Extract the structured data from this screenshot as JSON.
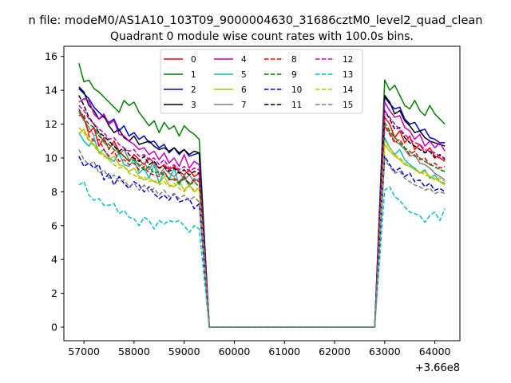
{
  "figure": {
    "suptitle": "n file: modeM0/AS1A10_103T09_9000004630_31686cztM0_level2_quad_clean",
    "x_offset_label": "+3.66e8"
  },
  "chart_data": {
    "type": "line",
    "title": "Quadrant 0 module wise count rates with 100.0s bins.",
    "xlabel": "",
    "ylabel": "",
    "x_offset": 366000000,
    "xlim": [
      56600,
      64500
    ],
    "ylim": [
      -0.8,
      16.6
    ],
    "xticks": [
      57000,
      58000,
      59000,
      60000,
      61000,
      62000,
      63000,
      64000
    ],
    "yticks": [
      0,
      2,
      4,
      6,
      8,
      10,
      12,
      14,
      16
    ],
    "grid": false,
    "legend": {
      "placement": "top-center",
      "columns": 4
    },
    "x_segment1": [
      56900,
      57000,
      57100,
      57200,
      57300,
      57400,
      57500,
      57600,
      57700,
      57800,
      57900,
      58000,
      58100,
      58200,
      58300,
      58400,
      58500,
      58600,
      58700,
      58800,
      58900,
      59000,
      59100,
      59200,
      59300
    ],
    "x_gap": [
      59500,
      62800
    ],
    "x_segment2": [
      63000,
      63100,
      63200,
      63300,
      63400,
      63500,
      63600,
      63700,
      63800,
      63900,
      64000,
      64100,
      64200
    ],
    "series": [
      {
        "name": "0",
        "color": "#ff0000",
        "dash": "solid",
        "seg1": [
          12.9,
          12.3,
          11.5,
          11.8,
          10.7,
          11.2,
          10.5,
          11.0,
          10.4,
          10.1,
          9.8,
          10.2,
          9.9,
          9.6,
          10.0,
          9.7,
          9.4,
          9.6,
          9.3,
          9.5,
          9.2,
          9.0,
          9.3,
          8.9,
          9.1
        ],
        "seg2": [
          12.4,
          12.0,
          11.2,
          11.6,
          10.9,
          11.3,
          10.5,
          10.8,
          10.3,
          10.6,
          10.1,
          10.0,
          9.8
        ]
      },
      {
        "name": "1",
        "color": "#008000",
        "dash": "solid",
        "seg1": [
          15.6,
          14.5,
          14.6,
          14.1,
          13.9,
          13.6,
          13.3,
          13.0,
          12.7,
          13.4,
          13.1,
          13.3,
          12.7,
          12.3,
          11.9,
          12.2,
          11.5,
          12.1,
          11.7,
          11.9,
          11.3,
          11.9,
          11.6,
          11.4,
          11.1
        ],
        "seg2": [
          14.6,
          14.0,
          14.3,
          13.7,
          13.1,
          12.9,
          13.4,
          12.8,
          12.5,
          13.1,
          12.6,
          12.3,
          12.0
        ]
      },
      {
        "name": "2",
        "color": "#0000cc",
        "dash": "solid",
        "seg1": [
          14.1,
          13.8,
          13.5,
          13.0,
          12.7,
          12.4,
          12.1,
          12.3,
          11.6,
          11.9,
          11.3,
          11.5,
          11.1,
          11.3,
          10.9,
          11.0,
          10.6,
          10.8,
          10.3,
          10.6,
          10.2,
          10.5,
          10.1,
          10.2,
          10.3
        ],
        "seg2": [
          13.6,
          13.2,
          12.9,
          13.0,
          12.3,
          12.0,
          12.1,
          11.6,
          11.7,
          11.2,
          11.1,
          10.9,
          10.9
        ]
      },
      {
        "name": "3",
        "color": "#000000",
        "dash": "solid",
        "seg1": [
          14.2,
          13.9,
          13.1,
          12.8,
          12.3,
          12.5,
          11.9,
          11.5,
          11.7,
          11.2,
          11.0,
          11.3,
          10.8,
          10.9,
          11.0,
          10.7,
          10.5,
          10.6,
          10.4,
          10.6,
          10.3,
          10.5,
          10.2,
          10.4,
          10.3
        ],
        "seg2": [
          13.7,
          13.3,
          12.6,
          12.8,
          12.2,
          11.9,
          11.5,
          11.6,
          11.2,
          11.0,
          10.9,
          10.8,
          10.7
        ]
      },
      {
        "name": "4",
        "color": "#bf00bf",
        "dash": "solid",
        "seg1": [
          13.3,
          13.5,
          13.4,
          12.6,
          12.3,
          12.6,
          12.0,
          12.2,
          11.4,
          11.3,
          11.0,
          10.8,
          10.5,
          10.6,
          10.2,
          10.4,
          9.9,
          10.3,
          9.7,
          10.0,
          9.5,
          10.2,
          9.4,
          9.8,
          9.6
        ],
        "seg2": [
          13.3,
          12.8,
          12.4,
          12.5,
          11.8,
          11.6,
          11.1,
          11.4,
          10.7,
          11.0,
          10.6,
          10.9,
          10.4
        ]
      },
      {
        "name": "5",
        "color": "#00bfbf",
        "dash": "solid",
        "seg1": [
          11.5,
          11.0,
          10.7,
          11.2,
          10.3,
          10.5,
          10.0,
          9.8,
          10.3,
          9.6,
          9.5,
          9.9,
          9.1,
          9.4,
          8.8,
          9.6,
          8.5,
          9.2,
          8.7,
          9.4,
          8.4,
          9.0,
          8.3,
          8.8,
          8.6
        ],
        "seg2": [
          11.2,
          10.6,
          10.2,
          10.5,
          9.9,
          9.6,
          9.4,
          9.1,
          9.3,
          8.8,
          9.0,
          8.6,
          8.5
        ]
      },
      {
        "name": "6",
        "color": "#bfbf00",
        "dash": "solid",
        "seg1": [
          11.4,
          11.7,
          11.1,
          10.8,
          10.4,
          10.2,
          9.9,
          10.1,
          9.6,
          9.5,
          9.2,
          9.4,
          8.9,
          8.7,
          8.8,
          8.6,
          8.5,
          8.9,
          8.4,
          8.3,
          8.6,
          8.1,
          8.4,
          8.0,
          8.2
        ],
        "seg2": [
          10.8,
          10.4,
          10.1,
          9.9,
          9.6,
          9.5,
          9.3,
          9.1,
          9.2,
          8.9,
          8.8,
          8.6,
          8.4
        ]
      },
      {
        "name": "7",
        "color": "#808080",
        "dash": "solid",
        "seg1": [
          12.7,
          12.2,
          11.8,
          11.3,
          11.5,
          10.9,
          10.6,
          10.8,
          10.2,
          10.5,
          9.9,
          10.0,
          9.5,
          9.7,
          9.3,
          9.8,
          9.0,
          9.4,
          9.1,
          8.9,
          9.2,
          8.7,
          9.0,
          8.6,
          8.8
        ],
        "seg2": [
          11.9,
          11.5,
          11.0,
          10.8,
          10.5,
          10.1,
          10.2,
          9.7,
          9.6,
          9.4,
          9.1,
          8.9,
          8.7
        ]
      },
      {
        "name": "8",
        "color": "#ff0000",
        "dash": "dashed",
        "seg1": [
          12.5,
          12.6,
          11.3,
          11.0,
          11.1,
          10.5,
          10.1,
          10.4,
          9.8,
          9.9,
          9.6,
          9.7,
          9.3,
          9.5,
          9.1,
          9.0,
          8.9,
          9.2,
          8.7,
          8.8,
          8.6,
          8.9,
          8.5,
          8.7,
          8.6
        ],
        "seg2": [
          11.9,
          11.4,
          10.9,
          11.1,
          10.6,
          10.2,
          10.4,
          9.9,
          10.0,
          9.6,
          9.7,
          9.4,
          9.5
        ]
      },
      {
        "name": "9",
        "color": "#008000",
        "dash": "dashed",
        "seg1": [
          12.8,
          12.4,
          12.0,
          11.8,
          11.3,
          11.0,
          10.8,
          10.5,
          10.3,
          10.1,
          9.8,
          9.9,
          9.6,
          9.3,
          9.5,
          9.1,
          9.2,
          9.0,
          8.8,
          8.7,
          8.5,
          8.8,
          8.4,
          8.6,
          8.3
        ],
        "seg2": [
          12.1,
          11.6,
          11.2,
          10.9,
          10.6,
          10.4,
          10.1,
          10.0,
          9.8,
          9.6,
          9.5,
          9.3,
          9.2
        ]
      },
      {
        "name": "10",
        "color": "#0000cc",
        "dash": "dashed",
        "seg1": [
          10.1,
          9.5,
          9.7,
          9.4,
          9.6,
          8.7,
          9.1,
          8.4,
          8.9,
          8.5,
          8.2,
          8.6,
          8.4,
          8.0,
          8.3,
          7.9,
          7.6,
          7.8,
          7.5,
          7.9,
          7.4,
          7.5,
          7.6,
          7.0,
          7.3
        ],
        "seg2": [
          10.1,
          9.6,
          9.2,
          9.4,
          8.9,
          9.1,
          8.6,
          8.7,
          8.3,
          8.5,
          8.1,
          8.2,
          8.0
        ]
      },
      {
        "name": "11",
        "color": "#000000",
        "dash": "dashed",
        "seg1": [
          13.7,
          13.1,
          12.4,
          12.0,
          11.5,
          11.3,
          11.0,
          10.7,
          10.4,
          10.6,
          10.2,
          10.0,
          9.8,
          10.1,
          9.6,
          9.8,
          9.4,
          9.5,
          9.2,
          9.4,
          9.1,
          9.3,
          9.0,
          9.2,
          9.1
        ],
        "seg2": [
          12.8,
          12.3,
          11.7,
          11.8,
          11.2,
          10.9,
          10.7,
          10.5,
          10.3,
          10.4,
          10.0,
          10.2,
          9.9
        ]
      },
      {
        "name": "12",
        "color": "#bf00bf",
        "dash": "dashed",
        "seg1": [
          13.1,
          12.8,
          12.3,
          12.0,
          11.7,
          11.5,
          11.1,
          11.2,
          10.8,
          10.6,
          10.4,
          10.5,
          10.1,
          10.2,
          9.9,
          10.0,
          9.6,
          9.9,
          9.4,
          9.6,
          9.3,
          9.5,
          9.2,
          9.4,
          9.3
        ],
        "seg2": [
          12.8,
          12.4,
          12.0,
          11.7,
          11.4,
          11.1,
          10.9,
          10.8,
          10.5,
          10.4,
          10.3,
          10.1,
          10.0
        ]
      },
      {
        "name": "13",
        "color": "#00bfbf",
        "dash": "dashed",
        "seg1": [
          8.4,
          8.6,
          7.8,
          7.5,
          7.6,
          7.2,
          7.2,
          7.3,
          6.7,
          6.9,
          6.5,
          6.4,
          6.0,
          6.5,
          6.3,
          5.8,
          6.3,
          6.1,
          6.3,
          6.2,
          6.3,
          6.0,
          5.6,
          6.0,
          5.8
        ],
        "seg2": [
          8.1,
          8.3,
          7.7,
          7.5,
          7.1,
          6.8,
          6.7,
          6.6,
          6.2,
          6.6,
          6.8,
          6.3,
          7.0
        ]
      },
      {
        "name": "14",
        "color": "#bfbf00",
        "dash": "dashed",
        "seg1": [
          11.8,
          11.5,
          11.0,
          10.7,
          10.3,
          10.1,
          9.9,
          9.6,
          9.4,
          9.5,
          9.1,
          9.0,
          8.8,
          8.9,
          8.6,
          8.7,
          8.4,
          8.6,
          8.3,
          8.5,
          8.2,
          8.0,
          8.4,
          8.1,
          8.2
        ],
        "seg2": [
          11.0,
          10.6,
          10.2,
          10.0,
          9.7,
          9.5,
          9.3,
          9.2,
          9.0,
          8.9,
          8.7,
          8.8,
          8.6
        ]
      },
      {
        "name": "15",
        "color": "#808080",
        "dash": "dashed",
        "seg1": [
          10.5,
          9.9,
          9.6,
          9.8,
          9.1,
          9.3,
          8.8,
          9.0,
          8.6,
          8.7,
          8.3,
          8.5,
          8.1,
          8.4,
          8.0,
          8.2,
          7.8,
          8.1,
          7.7,
          7.9,
          7.6,
          7.8,
          7.5,
          7.7,
          7.4
        ],
        "seg2": [
          9.9,
          9.5,
          9.1,
          9.2,
          8.8,
          8.6,
          8.4,
          8.3,
          8.1,
          8.2,
          7.9,
          8.0,
          7.9
        ]
      }
    ]
  }
}
